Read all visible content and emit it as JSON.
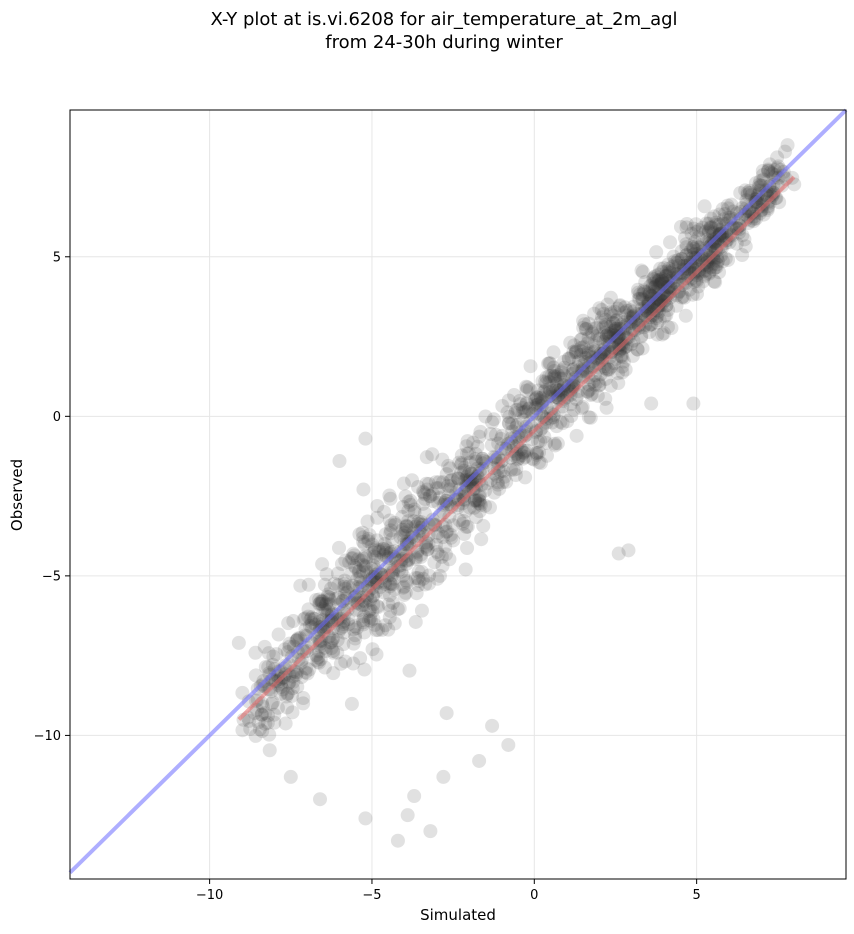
{
  "chart_data": {
    "type": "scatter",
    "title": "X-Y plot at is.vi.6208 for air_temperature_at_2m_agl",
    "subtitle": "from 24-30h during winter",
    "xlabel": "Simulated",
    "ylabel": "Observed",
    "xlim": [
      -14.3,
      9.6
    ],
    "ylim": [
      -14.5,
      9.6
    ],
    "xticks": [
      -10,
      -5,
      0,
      5
    ],
    "yticks": [
      -10,
      -5,
      0,
      5
    ],
    "x_tick_labels": [
      "−10",
      "−5",
      "0",
      "5"
    ],
    "y_tick_labels": [
      "−10",
      "−5",
      "0",
      "5"
    ],
    "grid": true,
    "point_color": "#333333",
    "point_alpha": 0.15,
    "lines": [
      {
        "kind": "one-to-one",
        "color": "#6b6bff",
        "x": [
          -14.3,
          9.6
        ],
        "y": [
          -14.3,
          9.6
        ]
      },
      {
        "kind": "regression",
        "color": "#e86a6a",
        "x": [
          -9.1,
          8.0
        ],
        "y": [
          -9.5,
          7.5
        ]
      }
    ],
    "clusters": [
      {
        "x": -8.0,
        "y": -8.6,
        "sx": 0.8,
        "sy": 1.1,
        "n": 90
      },
      {
        "x": -6.5,
        "y": -6.5,
        "sx": 1.0,
        "sy": 1.4,
        "n": 150
      },
      {
        "x": -5.0,
        "y": -5.2,
        "sx": 1.0,
        "sy": 1.6,
        "n": 170
      },
      {
        "x": -3.5,
        "y": -3.8,
        "sx": 1.0,
        "sy": 1.6,
        "n": 150
      },
      {
        "x": -2.0,
        "y": -2.3,
        "sx": 1.0,
        "sy": 1.4,
        "n": 130
      },
      {
        "x": -0.5,
        "y": -0.6,
        "sx": 1.0,
        "sy": 1.3,
        "n": 120
      },
      {
        "x": 1.0,
        "y": 1.0,
        "sx": 1.0,
        "sy": 1.2,
        "n": 150
      },
      {
        "x": 2.5,
        "y": 2.4,
        "sx": 1.0,
        "sy": 1.0,
        "n": 180
      },
      {
        "x": 4.0,
        "y": 3.9,
        "sx": 1.0,
        "sy": 0.9,
        "n": 200
      },
      {
        "x": 5.5,
        "y": 5.4,
        "sx": 0.9,
        "sy": 0.9,
        "n": 170
      },
      {
        "x": 7.0,
        "y": 6.8,
        "sx": 0.6,
        "sy": 0.7,
        "n": 90
      }
    ],
    "outliers": [
      {
        "x": -4.2,
        "y": -13.3
      },
      {
        "x": -3.9,
        "y": -12.5
      },
      {
        "x": -3.2,
        "y": -13.0
      },
      {
        "x": -5.2,
        "y": -12.6
      },
      {
        "x": -6.6,
        "y": -12.0
      },
      {
        "x": -7.5,
        "y": -11.3
      },
      {
        "x": -3.7,
        "y": -11.9
      },
      {
        "x": -2.8,
        "y": -11.3
      },
      {
        "x": -1.7,
        "y": -10.8
      },
      {
        "x": -0.8,
        "y": -10.3
      },
      {
        "x": -1.3,
        "y": -9.7
      },
      {
        "x": -2.7,
        "y": -9.3
      },
      {
        "x": 2.6,
        "y": -4.3
      },
      {
        "x": 2.9,
        "y": -4.2
      },
      {
        "x": -9.1,
        "y": -7.1
      },
      {
        "x": -6.0,
        "y": -1.4
      },
      {
        "x": -5.2,
        "y": -0.7
      },
      {
        "x": 3.6,
        "y": 0.4
      },
      {
        "x": 4.9,
        "y": 0.4
      },
      {
        "x": 7.8,
        "y": 8.5
      }
    ]
  }
}
